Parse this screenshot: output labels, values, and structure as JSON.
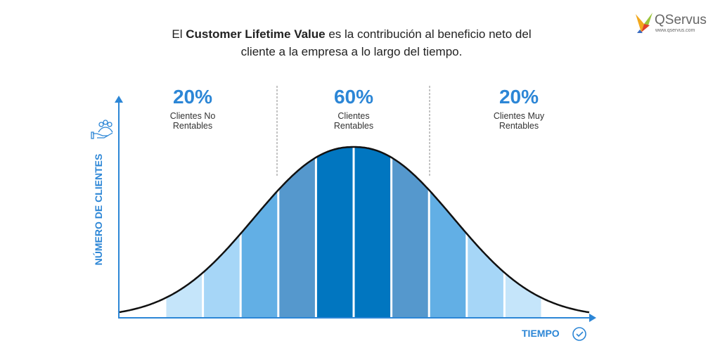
{
  "title": {
    "prefix": "El ",
    "bold": "Customer Lifetime Value",
    "suffix": "  es la contribución al beneficio neto del",
    "line2": "cliente a la empresa a lo largo del tiempo."
  },
  "logo": {
    "name": "QServus",
    "url": "www.qservus.com"
  },
  "segments": [
    {
      "percent": "20%",
      "line1": "Clientes No",
      "line2": "Rentables"
    },
    {
      "percent": "60%",
      "line1": "Clientes",
      "line2": "Rentables"
    },
    {
      "percent": "20%",
      "line1": "Clientes Muy",
      "line2": "Rentables"
    }
  ],
  "axes": {
    "y_label": "NÚMERO DE CLIENTES",
    "x_label": "TIEMPO",
    "y_icon": "hand-with-people-icon",
    "x_icon": "clock-check-icon"
  },
  "colors": {
    "accent": "#2c86d6",
    "bands": [
      "#c5e5fa",
      "#a6d6f7",
      "#62afe5",
      "#5598cd",
      "#0176c0",
      "#0176c0",
      "#5598cd",
      "#62afe5",
      "#a6d6f7",
      "#c5e5fa"
    ]
  }
}
